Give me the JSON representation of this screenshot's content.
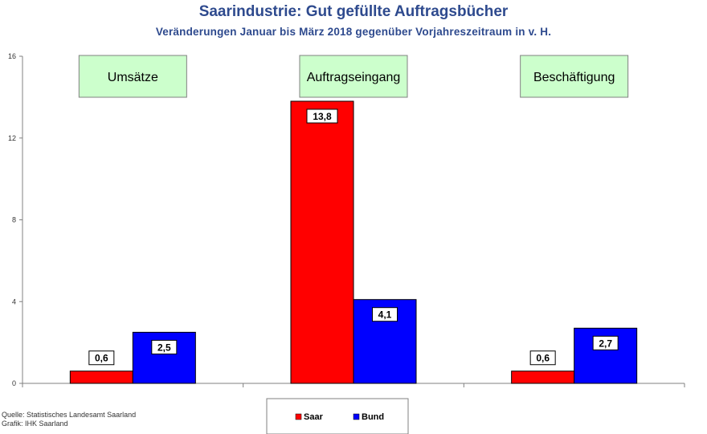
{
  "chart_data": {
    "type": "bar",
    "title": "Saarindustrie: Gut gefüllte Auftragsbücher",
    "subtitle": "Veränderungen  Januar bis März 2018  gegenüber Vorjahreszeitraum in v. H.",
    "categories": [
      "Umsätze",
      "Auftragseingang",
      "Beschäftigung"
    ],
    "series": [
      {
        "name": "Saar",
        "values": [
          0.6,
          13.8,
          0.6
        ],
        "labels": [
          "0,6",
          "13,8",
          "0,6"
        ],
        "color": "#ff0000"
      },
      {
        "name": "Bund",
        "values": [
          2.5,
          4.1,
          2.7
        ],
        "labels": [
          "2,5",
          "4,1",
          "2,7"
        ],
        "color": "#0000ff"
      }
    ],
    "yticks": [
      "0",
      "4",
      "8",
      "12",
      "16"
    ],
    "ylim": [
      0,
      16
    ],
    "legend": "bottom-center",
    "category_box_color": "#ccffcc",
    "grid": false
  },
  "footer": {
    "source_line": "Quelle: Statistisches Landesamt Saarland",
    "graphic_line": "Grafik: IHK Saarland"
  }
}
